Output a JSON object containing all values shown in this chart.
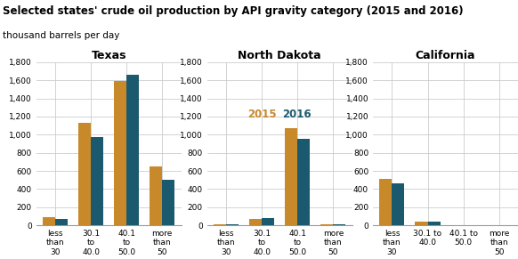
{
  "title_line1": "Selected states' crude oil production by API gravity category (2015 and 2016)",
  "title_line2": "thousand barrels per day",
  "states": [
    "Texas",
    "North Dakota",
    "California"
  ],
  "categories_texas": [
    "less\nthan\n30",
    "30.1\nto\n40.0",
    "40.1\nto\n50.0",
    "more\nthan\n50"
  ],
  "categories_nd": [
    "less\nthan\n30",
    "30.1\nto\n40.0",
    "40.1\nto\n50.0",
    "more\nthan\n50"
  ],
  "categories_ca": [
    "less\nthan\n30",
    "30.1 to\n40.0",
    "40.1 to\n50.0",
    "more\nthan\n50"
  ],
  "data_2015": [
    [
      90,
      1130,
      1590,
      645
    ],
    [
      10,
      75,
      1070,
      15
    ],
    [
      510,
      45,
      0,
      0
    ]
  ],
  "data_2016": [
    [
      70,
      975,
      1660,
      500
    ],
    [
      10,
      80,
      950,
      15
    ],
    [
      460,
      40,
      0,
      0
    ]
  ],
  "color_2015": "#c8892a",
  "color_2016": "#1b5a6e",
  "ylim": [
    0,
    1800
  ],
  "yticks": [
    0,
    200,
    400,
    600,
    800,
    1000,
    1200,
    1400,
    1600,
    1800
  ],
  "ytick_labels": [
    "0",
    "200",
    "400",
    "600",
    "800",
    "1,000",
    "1,200",
    "1,400",
    "1,600",
    "1,800"
  ],
  "bg_color": "#ffffff",
  "grid_color": "#cccccc",
  "title_fontsize": 8.5,
  "subtitle_fontsize": 7.5,
  "axes_title_fontsize": 9,
  "tick_fontsize": 6.5,
  "legend_fontsize": 8.5
}
